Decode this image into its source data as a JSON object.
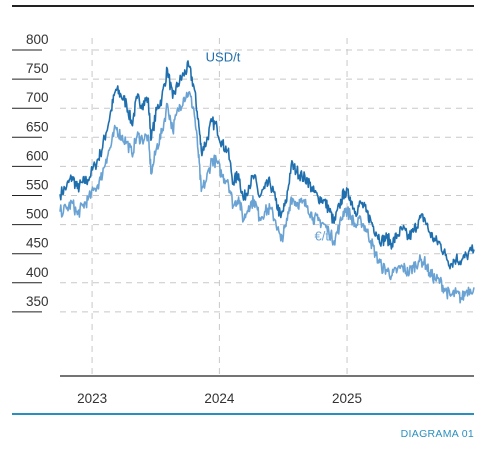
{
  "footer": {
    "label": "DIAGRAMA 01"
  },
  "colors": {
    "usd": "#1f6fae",
    "eur": "#6aa3d3",
    "grid": "#c8c8c8",
    "frame": "#222222",
    "footer_line": "#2a8fbf"
  },
  "chart_data": {
    "type": "line",
    "title": "",
    "xlabel": "",
    "ylabel": "",
    "ylim": [
      330,
      820
    ],
    "yticks": [
      800,
      750,
      700,
      650,
      600,
      550,
      500,
      450,
      400,
      350
    ],
    "xlim": [
      "2022-10-01",
      "2025-12-31"
    ],
    "xticks": [
      {
        "date": "2023-01-01",
        "label": "2023"
      },
      {
        "date": "2024-01-01",
        "label": "2024"
      },
      {
        "date": "2025-01-01",
        "label": "2025"
      }
    ],
    "grid": true,
    "series": [
      {
        "name": "USD/t",
        "color": "#1f6fae",
        "points": [
          [
            "2022-10-01",
            535
          ],
          [
            "2022-10-20",
            548
          ],
          [
            "2022-11-05",
            565
          ],
          [
            "2022-11-20",
            545
          ],
          [
            "2022-12-05",
            555
          ],
          [
            "2022-12-20",
            560
          ],
          [
            "2023-01-10",
            585
          ],
          [
            "2023-01-25",
            605
          ],
          [
            "2023-02-10",
            640
          ],
          [
            "2023-02-25",
            680
          ],
          [
            "2023-03-10",
            715
          ],
          [
            "2023-03-25",
            705
          ],
          [
            "2023-04-10",
            690
          ],
          [
            "2023-04-25",
            655
          ],
          [
            "2023-05-10",
            700
          ],
          [
            "2023-05-25",
            690
          ],
          [
            "2023-06-10",
            700
          ],
          [
            "2023-06-20",
            630
          ],
          [
            "2023-07-05",
            680
          ],
          [
            "2023-07-20",
            700
          ],
          [
            "2023-08-05",
            750
          ],
          [
            "2023-08-20",
            700
          ],
          [
            "2023-09-05",
            725
          ],
          [
            "2023-09-20",
            740
          ],
          [
            "2023-10-05",
            755
          ],
          [
            "2023-10-20",
            720
          ],
          [
            "2023-11-01",
            665
          ],
          [
            "2023-11-10",
            610
          ],
          [
            "2023-11-25",
            625
          ],
          [
            "2023-12-10",
            660
          ],
          [
            "2023-12-25",
            650
          ],
          [
            "2024-01-10",
            620
          ],
          [
            "2024-01-25",
            610
          ],
          [
            "2024-02-10",
            555
          ],
          [
            "2024-02-25",
            570
          ],
          [
            "2024-03-10",
            525
          ],
          [
            "2024-03-25",
            550
          ],
          [
            "2024-04-10",
            565
          ],
          [
            "2024-04-25",
            530
          ],
          [
            "2024-05-10",
            545
          ],
          [
            "2024-05-25",
            555
          ],
          [
            "2024-06-10",
            525
          ],
          [
            "2024-06-25",
            495
          ],
          [
            "2024-07-10",
            520
          ],
          [
            "2024-07-25",
            585
          ],
          [
            "2024-08-10",
            575
          ],
          [
            "2024-08-25",
            565
          ],
          [
            "2024-09-10",
            560
          ],
          [
            "2024-09-25",
            540
          ],
          [
            "2024-10-10",
            530
          ],
          [
            "2024-10-25",
            525
          ],
          [
            "2024-11-10",
            510
          ],
          [
            "2024-11-25",
            485
          ],
          [
            "2024-12-10",
            515
          ],
          [
            "2024-12-25",
            540
          ],
          [
            "2025-01-10",
            530
          ],
          [
            "2025-01-25",
            505
          ],
          [
            "2025-02-10",
            520
          ],
          [
            "2025-02-25",
            505
          ],
          [
            "2025-03-10",
            490
          ],
          [
            "2025-03-25",
            470
          ],
          [
            "2025-04-10",
            455
          ],
          [
            "2025-04-25",
            460
          ],
          [
            "2025-05-10",
            450
          ],
          [
            "2025-05-25",
            465
          ],
          [
            "2025-06-10",
            475
          ],
          [
            "2025-06-25",
            460
          ],
          [
            "2025-07-10",
            470
          ],
          [
            "2025-07-25",
            490
          ],
          [
            "2025-08-10",
            495
          ],
          [
            "2025-08-25",
            470
          ],
          [
            "2025-09-10",
            455
          ],
          [
            "2025-09-25",
            450
          ],
          [
            "2025-10-10",
            430
          ],
          [
            "2025-10-25",
            415
          ],
          [
            "2025-11-10",
            425
          ],
          [
            "2025-11-25",
            420
          ],
          [
            "2025-12-10",
            430
          ],
          [
            "2025-12-31",
            440
          ]
        ]
      },
      {
        "name": "€/t",
        "color": "#6aa3d3",
        "points": [
          [
            "2022-10-01",
            505
          ],
          [
            "2022-10-20",
            510
          ],
          [
            "2022-11-05",
            520
          ],
          [
            "2022-11-20",
            500
          ],
          [
            "2022-12-05",
            515
          ],
          [
            "2022-12-20",
            525
          ],
          [
            "2023-01-10",
            545
          ],
          [
            "2023-01-25",
            560
          ],
          [
            "2023-02-10",
            595
          ],
          [
            "2023-02-25",
            620
          ],
          [
            "2023-03-10",
            650
          ],
          [
            "2023-03-25",
            635
          ],
          [
            "2023-04-10",
            625
          ],
          [
            "2023-04-25",
            605
          ],
          [
            "2023-05-10",
            635
          ],
          [
            "2023-05-25",
            630
          ],
          [
            "2023-06-10",
            635
          ],
          [
            "2023-06-20",
            570
          ],
          [
            "2023-07-05",
            615
          ],
          [
            "2023-07-20",
            640
          ],
          [
            "2023-08-05",
            690
          ],
          [
            "2023-08-20",
            645
          ],
          [
            "2023-09-05",
            680
          ],
          [
            "2023-09-20",
            700
          ],
          [
            "2023-10-05",
            710
          ],
          [
            "2023-10-20",
            680
          ],
          [
            "2023-11-01",
            610
          ],
          [
            "2023-11-10",
            540
          ],
          [
            "2023-11-25",
            560
          ],
          [
            "2023-12-10",
            595
          ],
          [
            "2023-12-25",
            590
          ],
          [
            "2024-01-10",
            565
          ],
          [
            "2024-01-25",
            560
          ],
          [
            "2024-02-10",
            515
          ],
          [
            "2024-02-25",
            530
          ],
          [
            "2024-03-10",
            490
          ],
          [
            "2024-03-25",
            515
          ],
          [
            "2024-04-10",
            525
          ],
          [
            "2024-04-25",
            495
          ],
          [
            "2024-05-10",
            505
          ],
          [
            "2024-05-25",
            510
          ],
          [
            "2024-06-10",
            490
          ],
          [
            "2024-06-25",
            455
          ],
          [
            "2024-07-10",
            480
          ],
          [
            "2024-07-25",
            530
          ],
          [
            "2024-08-10",
            520
          ],
          [
            "2024-08-25",
            520
          ],
          [
            "2024-09-10",
            515
          ],
          [
            "2024-09-25",
            495
          ],
          [
            "2024-10-10",
            490
          ],
          [
            "2024-10-25",
            485
          ],
          [
            "2024-11-10",
            470
          ],
          [
            "2024-11-25",
            455
          ],
          [
            "2024-12-10",
            480
          ],
          [
            "2024-12-25",
            510
          ],
          [
            "2025-01-10",
            500
          ],
          [
            "2025-01-25",
            480
          ],
          [
            "2025-02-10",
            490
          ],
          [
            "2025-02-25",
            475
          ],
          [
            "2025-03-10",
            455
          ],
          [
            "2025-03-25",
            430
          ],
          [
            "2025-04-10",
            410
          ],
          [
            "2025-04-25",
            405
          ],
          [
            "2025-05-10",
            395
          ],
          [
            "2025-05-25",
            405
          ],
          [
            "2025-06-10",
            410
          ],
          [
            "2025-06-25",
            400
          ],
          [
            "2025-07-10",
            410
          ],
          [
            "2025-07-25",
            420
          ],
          [
            "2025-08-10",
            420
          ],
          [
            "2025-08-25",
            400
          ],
          [
            "2025-09-10",
            390
          ],
          [
            "2025-09-25",
            385
          ],
          [
            "2025-10-10",
            370
          ],
          [
            "2025-10-25",
            360
          ],
          [
            "2025-11-10",
            365
          ],
          [
            "2025-11-25",
            355
          ],
          [
            "2025-12-10",
            370
          ],
          [
            "2025-12-31",
            375
          ]
        ]
      }
    ],
    "annotations": [
      {
        "text": "USD/t",
        "series": "USD/t",
        "date": "2023-10-25",
        "value": 760
      },
      {
        "text": "€/t",
        "series": "€/t",
        "date": "2024-09-01",
        "value": 452
      }
    ]
  }
}
